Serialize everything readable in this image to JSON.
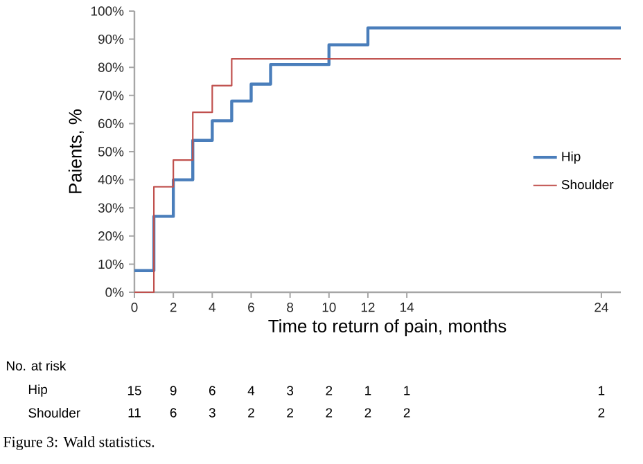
{
  "chart_data": {
    "type": "step",
    "xlabel": "Time to return of pain, months",
    "ylabel": "Paients, %",
    "series": [
      {
        "name": "Hip",
        "color": "#4a7ebb",
        "x": [
          0,
          1,
          2,
          3,
          4,
          5,
          6,
          7,
          10,
          12,
          25
        ],
        "values": [
          7.7,
          27,
          40,
          54,
          61,
          68,
          74,
          81,
          88,
          94,
          94
        ]
      },
      {
        "name": "Shoulder",
        "color": "#c0504d",
        "x": [
          0,
          1,
          2,
          3,
          4,
          5,
          25
        ],
        "values": [
          0,
          37.5,
          47,
          64,
          73.5,
          83,
          83
        ]
      }
    ],
    "xlim": [
      0,
      25
    ],
    "xticks": [
      0,
      2,
      4,
      6,
      8,
      10,
      12,
      14,
      24
    ],
    "ylim": [
      0,
      100
    ],
    "yticks": [
      {
        "value": 0,
        "label": "0%"
      },
      {
        "value": 10,
        "label": "10%"
      },
      {
        "value": 20,
        "label": "20%"
      },
      {
        "value": 30,
        "label": "30%"
      },
      {
        "value": 40,
        "label": "40%"
      },
      {
        "value": 50,
        "label": "50%"
      },
      {
        "value": 60,
        "label": "60%"
      },
      {
        "value": 70,
        "label": "70%"
      },
      {
        "value": 80,
        "label": "80%"
      },
      {
        "value": 90,
        "label": "90%"
      },
      {
        "value": 100,
        "label": "100%"
      }
    ],
    "legend": "right",
    "marker": "none",
    "line_style": "solid",
    "annotations": [
      "No. at risk",
      "Hip",
      "15",
      "9",
      "6",
      "4",
      "3",
      "2",
      "1",
      "1",
      "1",
      "Shoulder",
      "11",
      "6",
      "3",
      "2",
      "2",
      "2",
      "2",
      "2",
      "2",
      "Figure 3: Wald statistics."
    ]
  }
}
